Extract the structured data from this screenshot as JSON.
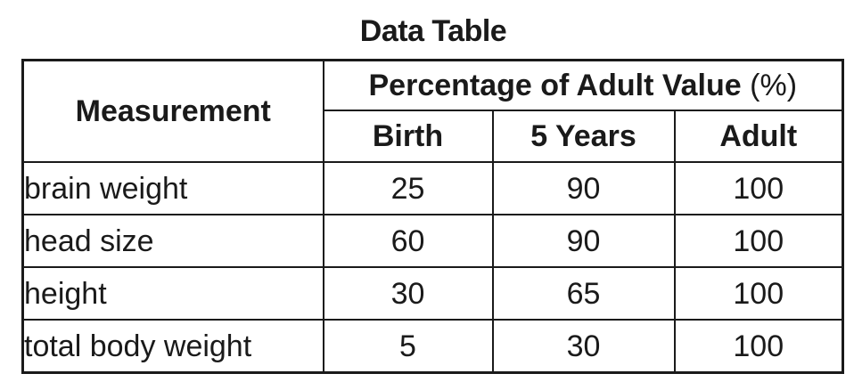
{
  "chart_data": {
    "type": "table",
    "title": "Data Table",
    "row_header": "Measurement",
    "group_header": "Percentage of Adult Value",
    "group_header_unit": "(%)",
    "columns": [
      "Birth",
      "5 Years",
      "Adult"
    ],
    "rows": [
      {
        "label": "brain weight",
        "values": [
          "25",
          "90",
          "100"
        ]
      },
      {
        "label": "head size",
        "values": [
          "60",
          "90",
          "100"
        ]
      },
      {
        "label": "height",
        "values": [
          "30",
          "65",
          "100"
        ]
      },
      {
        "label": "total body weight",
        "values": [
          "5",
          "30",
          "100"
        ]
      }
    ]
  }
}
